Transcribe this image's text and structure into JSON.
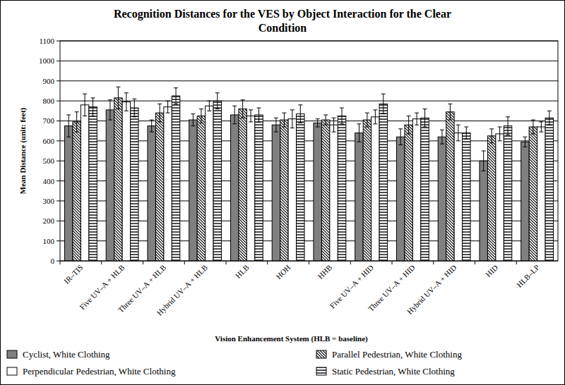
{
  "chart_data": {
    "type": "bar",
    "title": "Recognition Distances for the VES by Object Interaction for the Clear Condition",
    "x_label": "Vision Enhancement System (HLB = baseline)",
    "y_label": "Mean Distance (unit: feet)",
    "categories": [
      "IR–TIS",
      "Five UV–A + HLB",
      "Three UV–A + HLB",
      "Hybrid UV–A + HLB",
      "HLB",
      "HOH",
      "HHB",
      "Five UV–A + HID",
      "Three UV–A + HID",
      "Hybrid UV–A + HID",
      "HID",
      "HLB–LP"
    ],
    "series": [
      {
        "name": "Cyclist, White Clothing",
        "color": "#808080",
        "values": [
          675,
          755,
          675,
          705,
          730,
          680,
          690,
          640,
          620,
          620,
          500,
          595
        ],
        "errors": [
          55,
          50,
          30,
          30,
          45,
          35,
          20,
          45,
          40,
          35,
          50,
          25
        ]
      },
      {
        "name": "Parallel Pedestrian, White Clothing",
        "color": "#ffffff",
        "values": [
          695,
          815,
          740,
          725,
          760,
          705,
          705,
          705,
          680,
          745,
          625,
          670
        ],
        "errors": [
          50,
          55,
          45,
          35,
          45,
          35,
          25,
          35,
          45,
          40,
          35,
          35
        ]
      },
      {
        "name": "Perpendicular Pedestrian, White Clothing",
        "color": "#ffffff",
        "values": [
          780,
          795,
          770,
          775,
          725,
          710,
          680,
          720,
          710,
          640,
          635,
          670
        ],
        "errors": [
          55,
          45,
          30,
          25,
          30,
          45,
          35,
          35,
          30,
          40,
          35,
          25
        ]
      },
      {
        "name": "Static Pedestrian, White Clothing",
        "color": "#ffffff",
        "values": [
          770,
          765,
          825,
          800,
          730,
          735,
          725,
          785,
          715,
          640,
          675,
          715
        ],
        "errors": [
          45,
          45,
          40,
          40,
          35,
          45,
          40,
          50,
          45,
          30,
          45,
          35
        ]
      }
    ],
    "ylim": [
      0,
      1100
    ],
    "yticks": [
      0,
      100,
      200,
      300,
      400,
      500,
      600,
      700,
      800,
      900,
      1000,
      1100
    ],
    "grid": true,
    "legend": "bottom"
  }
}
